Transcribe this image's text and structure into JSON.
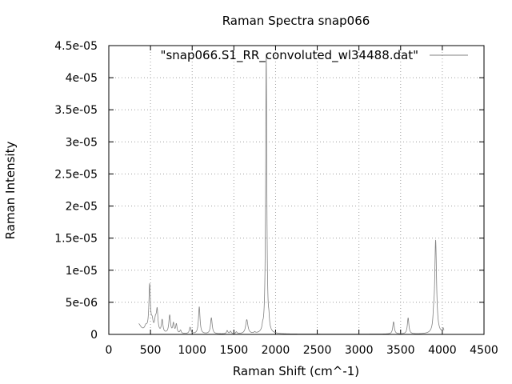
{
  "chart_data": {
    "type": "line",
    "title": "Raman Spectra snap066",
    "xlabel": "Raman Shift (cm^-1)",
    "ylabel": "Raman Intensity",
    "xlim": [
      0,
      4500
    ],
    "ylim": [
      0,
      4.5e-05
    ],
    "grid": true,
    "legend_position": "top-right",
    "x_ticks": [
      0,
      500,
      1000,
      1500,
      2000,
      2500,
      3000,
      3500,
      4000,
      4500
    ],
    "x_tick_labels": [
      "0",
      "500",
      "1000",
      "1500",
      "2000",
      "2500",
      "3000",
      "3500",
      "4000",
      "4500"
    ],
    "y_ticks": [
      0,
      5e-06,
      1e-05,
      1.5e-05,
      2e-05,
      2.5e-05,
      3e-05,
      3.5e-05,
      4e-05,
      4.5e-05
    ],
    "y_tick_labels": [
      "0",
      "5e-06",
      "1e-05",
      "1.5e-05",
      "2e-05",
      "2.5e-05",
      "3e-05",
      "3.5e-05",
      "4e-05",
      "4.5e-05"
    ],
    "x_range": [
      360,
      4020
    ],
    "baseline": 4e-08,
    "series": [
      {
        "name": "\"snap066.S1_RR_convoluted_wl34488.dat\"",
        "color": "#808080",
        "peaks": [
          {
            "center": 350,
            "height": 1.6e-06,
            "width": 45
          },
          {
            "center": 445,
            "height": 8e-07,
            "width": 20
          },
          {
            "center": 490,
            "height": 7.2e-06,
            "width": 11
          },
          {
            "center": 520,
            "height": 1.5e-06,
            "width": 14
          },
          {
            "center": 560,
            "height": 1.8e-06,
            "width": 14
          },
          {
            "center": 580,
            "height": 3.2e-06,
            "width": 11
          },
          {
            "center": 640,
            "height": 2e-06,
            "width": 11
          },
          {
            "center": 730,
            "height": 2.8e-06,
            "width": 12
          },
          {
            "center": 775,
            "height": 1.5e-06,
            "width": 10
          },
          {
            "center": 810,
            "height": 1.4e-06,
            "width": 10
          },
          {
            "center": 860,
            "height": 5e-07,
            "width": 10
          },
          {
            "center": 975,
            "height": 1e-06,
            "width": 11
          },
          {
            "center": 1085,
            "height": 4.2e-06,
            "width": 11
          },
          {
            "center": 1230,
            "height": 2.5e-06,
            "width": 12
          },
          {
            "center": 1420,
            "height": 5e-07,
            "width": 10
          },
          {
            "center": 1460,
            "height": 4e-07,
            "width": 10
          },
          {
            "center": 1530,
            "height": 3e-07,
            "width": 10
          },
          {
            "center": 1655,
            "height": 2.2e-06,
            "width": 16
          },
          {
            "center": 1750,
            "height": 2e-07,
            "width": 10
          },
          {
            "center": 1845,
            "height": 6e-07,
            "width": 8
          },
          {
            "center": 1888,
            "height": 4.35e-05,
            "width": 8
          },
          {
            "center": 1920,
            "height": 1.2e-06,
            "width": 7
          },
          {
            "center": 3415,
            "height": 1.9e-06,
            "width": 11
          },
          {
            "center": 3590,
            "height": 2.5e-06,
            "width": 11
          },
          {
            "center": 3920,
            "height": 1.45e-05,
            "width": 13
          },
          {
            "center": 3895,
            "height": 1.5e-06,
            "width": 8
          },
          {
            "center": 4010,
            "height": 7e-07,
            "width": 10
          }
        ]
      }
    ]
  }
}
